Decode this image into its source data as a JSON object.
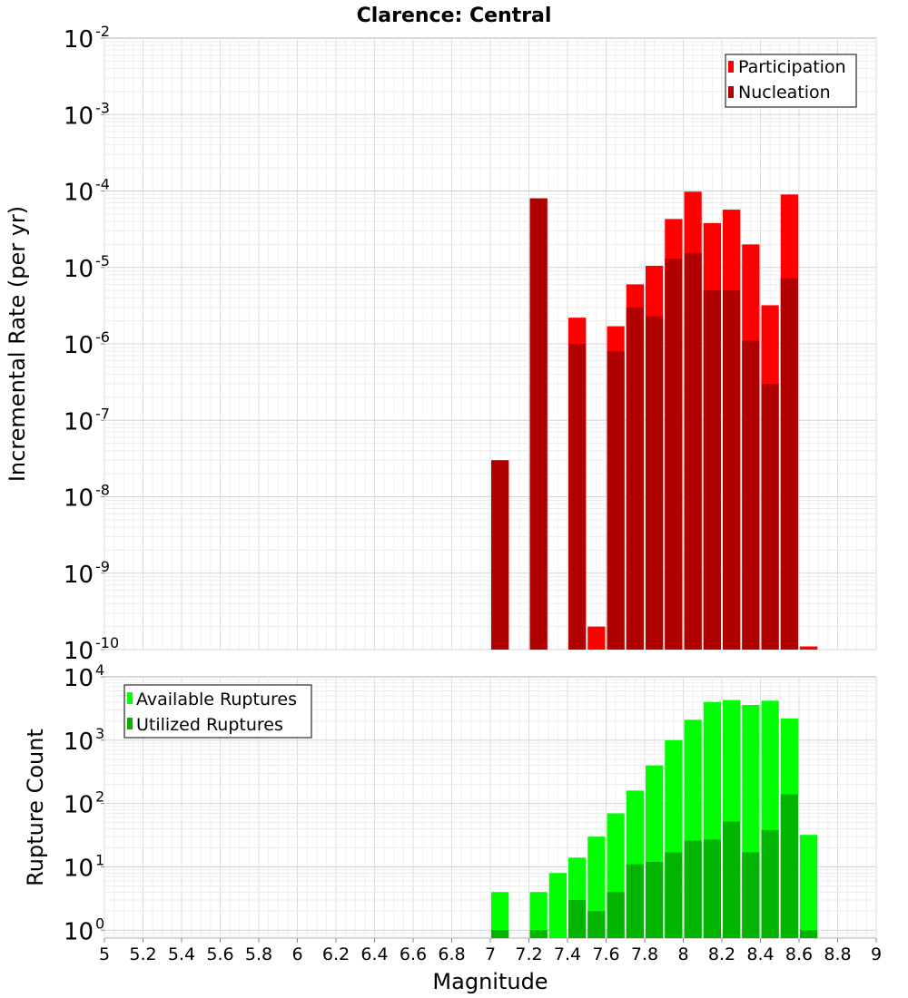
{
  "chart_data": [
    {
      "type": "bar",
      "title": "Clarence: Central",
      "xlabel": "",
      "ylabel": "Incremental Rate (per yr)",
      "yscale": "log",
      "ylim": [
        1e-10,
        0.01
      ],
      "xlim": [
        5,
        9
      ],
      "grid": true,
      "legend_position": "top-right",
      "x": [
        7.05,
        7.25,
        7.45,
        7.55,
        7.65,
        7.75,
        7.85,
        7.95,
        8.05,
        8.15,
        8.25,
        8.35,
        8.45,
        8.55,
        8.65
      ],
      "series": [
        {
          "name": "Participation",
          "color": "#ff0000",
          "values": [
            3e-08,
            8e-05,
            2.2e-06,
            2e-10,
            1.7e-06,
            6e-06,
            1.05e-05,
            4.3e-05,
            9.8e-05,
            3.8e-05,
            5.7e-05,
            2e-05,
            3.2e-06,
            9e-05,
            1.1e-10
          ]
        },
        {
          "name": "Nucleation",
          "color": "#b00000",
          "values": [
            3e-08,
            8e-05,
            1e-06,
            null,
            8e-07,
            3e-06,
            2.3e-06,
            1.3e-05,
            1.55e-05,
            5e-06,
            5e-06,
            1.1e-06,
            3e-07,
            7.2e-06,
            null
          ]
        }
      ]
    },
    {
      "type": "bar",
      "title": "",
      "xlabel": "Magnitude",
      "ylabel": "Rupture Count",
      "yscale": "log",
      "ylim": [
        0.75,
        10000.0
      ],
      "xlim": [
        5,
        9
      ],
      "grid": true,
      "legend_position": "top-left",
      "x_ticks": [
        "5",
        "5.2",
        "5.4",
        "5.6",
        "5.8",
        "6",
        "6.2",
        "6.4",
        "6.6",
        "6.8",
        "7",
        "7.2",
        "7.4",
        "7.6",
        "7.8",
        "8",
        "8.2",
        "8.4",
        "8.6",
        "8.8",
        "9"
      ],
      "x": [
        7.05,
        7.25,
        7.35,
        7.45,
        7.55,
        7.65,
        7.75,
        7.85,
        7.95,
        8.05,
        8.15,
        8.25,
        8.35,
        8.45,
        8.55,
        8.65
      ],
      "series": [
        {
          "name": "Available Ruptures",
          "color": "#00ff00",
          "values": [
            4,
            4,
            8,
            14,
            30,
            70,
            160,
            400,
            1000,
            2100,
            4000,
            4300,
            3600,
            4200,
            2200,
            32
          ]
        },
        {
          "name": "Utilized Ruptures",
          "color": "#00b400",
          "values": [
            1,
            1,
            null,
            3,
            2,
            4,
            11,
            12,
            17,
            26,
            27,
            52,
            17,
            38,
            140,
            1
          ]
        }
      ]
    }
  ]
}
